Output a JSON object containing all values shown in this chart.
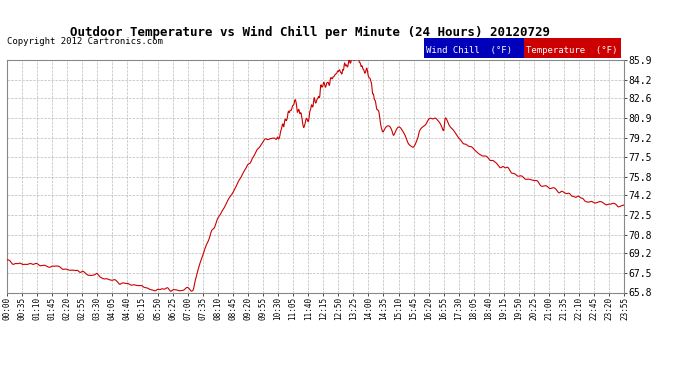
{
  "title": "Outdoor Temperature vs Wind Chill per Minute (24 Hours) 20120729",
  "copyright": "Copyright 2012 Cartronics.com",
  "background_color": "#ffffff",
  "plot_bg_color": "#ffffff",
  "grid_color": "#aaaaaa",
  "line_color": "#cc0000",
  "ylim": [
    65.8,
    85.9
  ],
  "yticks": [
    65.8,
    67.5,
    69.2,
    70.8,
    72.5,
    74.2,
    75.8,
    77.5,
    79.2,
    80.9,
    82.6,
    84.2,
    85.9
  ],
  "legend_wind_chill_bg": "#0000bb",
  "legend_temp_bg": "#cc0000",
  "xtick_labels": [
    "00:00",
    "00:35",
    "01:10",
    "01:45",
    "02:20",
    "02:55",
    "03:30",
    "04:05",
    "04:40",
    "05:15",
    "05:50",
    "06:25",
    "07:00",
    "07:35",
    "08:10",
    "08:45",
    "09:20",
    "09:55",
    "10:30",
    "11:05",
    "11:40",
    "12:15",
    "12:50",
    "13:25",
    "14:00",
    "14:35",
    "15:10",
    "15:45",
    "16:20",
    "16:55",
    "17:30",
    "18:05",
    "18:40",
    "19:15",
    "19:50",
    "20:25",
    "21:00",
    "21:35",
    "22:10",
    "22:45",
    "23:20",
    "23:55"
  ]
}
